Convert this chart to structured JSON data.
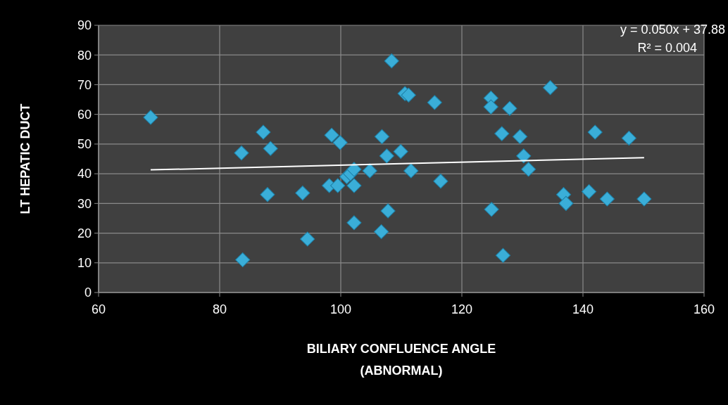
{
  "chart_data": {
    "type": "scatter",
    "xlabel": "BILIARY CONFLUENCE ANGLE\n(ABNORMAL)",
    "ylabel": "LT HEPATIC DUCT",
    "xlim": [
      60,
      160
    ],
    "xticks": [
      60,
      80,
      100,
      120,
      140,
      160
    ],
    "ylim": [
      0,
      90
    ],
    "yticks": [
      0,
      10,
      20,
      30,
      40,
      50,
      60,
      70,
      80,
      90
    ],
    "grid": true,
    "marker": "diamond",
    "annotations": [
      "y = 0.050x + 37.88",
      "R² = 0.004"
    ],
    "series": [
      {
        "color": "#3aaed8",
        "x": [
          68.6,
          83.8,
          83.6,
          87.2,
          87.9,
          88.4,
          93.7,
          94.5,
          98.1,
          98.5,
          99.5,
          99.9,
          101,
          101.6,
          102.2,
          102.2,
          102.2,
          104.8,
          106.7,
          106.8,
          107.6,
          107.8,
          108.4,
          109.9,
          110.6,
          111.2,
          111.6,
          115.5,
          116.5,
          124.8,
          124.8,
          124.9,
          126.6,
          126.8,
          127.9,
          129.6,
          130.2,
          131,
          134.6,
          136.8,
          137.2,
          141,
          142,
          144,
          147.6,
          150.1
        ],
        "values": [
          59,
          11,
          47,
          54,
          33,
          48.5,
          33.5,
          18,
          36,
          53,
          36,
          50.5,
          39,
          40,
          41.5,
          36,
          23.5,
          41,
          20.5,
          52.5,
          46,
          27.5,
          78,
          47.5,
          67,
          66.5,
          41,
          64,
          37.5,
          65.5,
          62.5,
          28,
          53.5,
          12.5,
          62,
          52.5,
          46,
          41.5,
          69,
          33,
          30,
          34,
          54,
          31.5,
          52,
          31.5
        ]
      },
      {
        "type": "line",
        "color": "#ffffff",
        "line_style": "solid",
        "marker": "none",
        "x": [
          68.6,
          150.1
        ],
        "values": [
          41.3,
          45.4
        ]
      }
    ]
  }
}
